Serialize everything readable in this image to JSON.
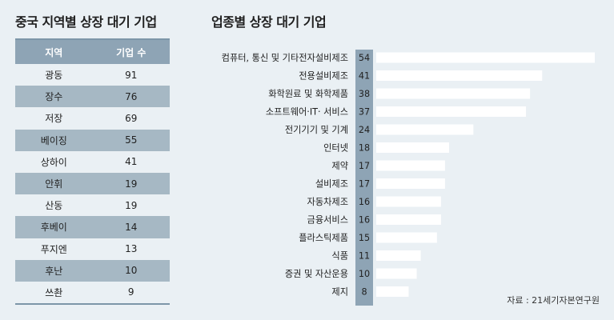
{
  "left_table": {
    "title": "중국 지역별 상장 대기 기업",
    "headers": [
      "지역",
      "기업 수"
    ],
    "rows": [
      {
        "region": "광동",
        "count": "91"
      },
      {
        "region": "장수",
        "count": "76"
      },
      {
        "region": "저장",
        "count": "69"
      },
      {
        "region": "베이징",
        "count": "55"
      },
      {
        "region": "상하이",
        "count": "41"
      },
      {
        "region": "안휘",
        "count": "19"
      },
      {
        "region": "산동",
        "count": "19"
      },
      {
        "region": "후베이",
        "count": "14"
      },
      {
        "region": "푸지엔",
        "count": "13"
      },
      {
        "region": "후난",
        "count": "10"
      },
      {
        "region": "쓰촨",
        "count": "9"
      }
    ]
  },
  "chart_data": [
    {
      "type": "table",
      "title": "중국 지역별 상장 대기 기업",
      "columns": [
        "지역",
        "기업 수"
      ],
      "rows": [
        [
          "광동",
          91
        ],
        [
          "장수",
          76
        ],
        [
          "저장",
          69
        ],
        [
          "베이징",
          55
        ],
        [
          "상하이",
          41
        ],
        [
          "안휘",
          19
        ],
        [
          "산동",
          19
        ],
        [
          "후베이",
          14
        ],
        [
          "푸지엔",
          13
        ],
        [
          "후난",
          10
        ],
        [
          "쓰촨",
          9
        ]
      ]
    },
    {
      "type": "bar",
      "orientation": "horizontal",
      "title": "업종별 상장 대기 기업",
      "categories": [
        "컴퓨터, 통신 및 기타전자설비제조",
        "전용설비제조",
        "화학원료 및 화학제품",
        "소프트웨어·IT· 서비스",
        "전기기기 및 기계",
        "인터넷",
        "제약",
        "설비제조",
        "자동차제조",
        "금융서비스",
        "플라스틱제품",
        "식품",
        "증권 및 자산운용",
        "제지"
      ],
      "values": [
        54,
        41,
        38,
        37,
        24,
        18,
        17,
        17,
        16,
        16,
        15,
        11,
        10,
        8
      ],
      "xlim": [
        0,
        54
      ],
      "grid": false,
      "source": "자료 : 21세기자본연구원"
    }
  ],
  "colors": {
    "background": "#eaf0f4",
    "table_header": "#8ea4b5",
    "table_alt_row": "#a6b8c4",
    "bar": "#ffffff",
    "value_column": "#8ea4b5"
  }
}
